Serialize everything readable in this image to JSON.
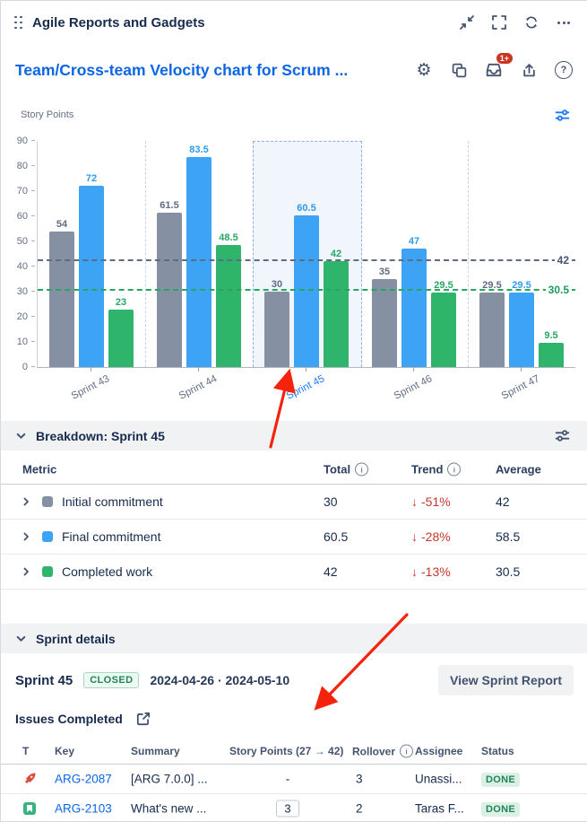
{
  "colors": {
    "accent_blue": "#0C66E4",
    "bar_gray": "#8590A2",
    "bar_blue": "#3CA3F5",
    "bar_green": "#2FB56B",
    "trend_red": "#C9372C",
    "arrow_red": "#F5230C",
    "badge_red": "#CA3521",
    "success_green": "#1F845A"
  },
  "icons": {
    "gear": "⚙",
    "help": "?",
    "trend_down": "↓"
  },
  "window": {
    "title": "Agile Reports and Gadgets"
  },
  "gadget": {
    "title": "Team/Cross-team Velocity chart for Scrum ...",
    "notification_badge": "1+"
  },
  "chart_data": {
    "type": "bar",
    "title": "Story Points",
    "ylabel": "Story Points",
    "xlabel": "",
    "ylim": [
      0,
      90
    ],
    "ytick_step": 10,
    "grid": false,
    "legend_position": "none",
    "categories": [
      "Sprint 43",
      "Sprint 44",
      "Sprint 45",
      "Sprint 46",
      "Sprint 47"
    ],
    "selected_category": "Sprint 45",
    "series": [
      {
        "name": "Initial commitment",
        "color": "#8590A2",
        "label_color": "#5E6C84",
        "values": [
          54,
          61.5,
          30,
          35,
          29.5
        ]
      },
      {
        "name": "Final commitment",
        "color": "#3CA3F5",
        "label_color": "#2F9BE8",
        "values": [
          72,
          83.5,
          60.5,
          47,
          29.5
        ]
      },
      {
        "name": "Completed work",
        "color": "#2FB56B",
        "label_color": "#27A662",
        "values": [
          23,
          48.5,
          42,
          29.5,
          9.5
        ]
      }
    ],
    "reference_lines": [
      {
        "label": "42",
        "value": 42,
        "color": "#5E6C84",
        "label_color": "#44546F"
      },
      {
        "label": "30.5",
        "value": 30.5,
        "color": "#27A662",
        "label_color": "#1F9C5C"
      }
    ]
  },
  "breakdown": {
    "header": "Breakdown: Sprint 45",
    "columns": {
      "metric": "Metric",
      "total": "Total",
      "trend": "Trend",
      "average": "Average"
    },
    "rows": [
      {
        "metric": "Initial commitment",
        "color": "#8590A2",
        "total": "30",
        "trend": "-51%",
        "average": "42"
      },
      {
        "metric": "Final commitment",
        "color": "#3CA3F5",
        "total": "60.5",
        "trend": "-28%",
        "average": "58.5"
      },
      {
        "metric": "Completed work",
        "color": "#2FB56B",
        "total": "42",
        "trend": "-13%",
        "average": "30.5"
      }
    ]
  },
  "sprint_details": {
    "header": "Sprint details",
    "sprint_name": "Sprint 45",
    "state_badge": "CLOSED",
    "date_range": "2024-04-26 · 2024-05-10",
    "view_report_button": "View Sprint Report",
    "issues_completed_label": "Issues Completed",
    "issues_table": {
      "columns": {
        "type": "T",
        "key": "Key",
        "summary": "Summary",
        "story_points": "Story Points (27 → 42)",
        "rollover": "Rollover",
        "assignee": "Assignee",
        "status": "Status"
      },
      "rows": [
        {
          "type": "release",
          "key": "ARG-2087",
          "summary": "[ARG 7.0.0] ...",
          "story_points": "-",
          "story_points_boxed": false,
          "rollover": "3",
          "assignee": "Unassi...",
          "status": "DONE"
        },
        {
          "type": "story",
          "key": "ARG-2103",
          "summary": "What's new ...",
          "story_points": "3",
          "story_points_boxed": true,
          "rollover": "2",
          "assignee": "Taras F...",
          "status": "DONE"
        }
      ]
    }
  }
}
